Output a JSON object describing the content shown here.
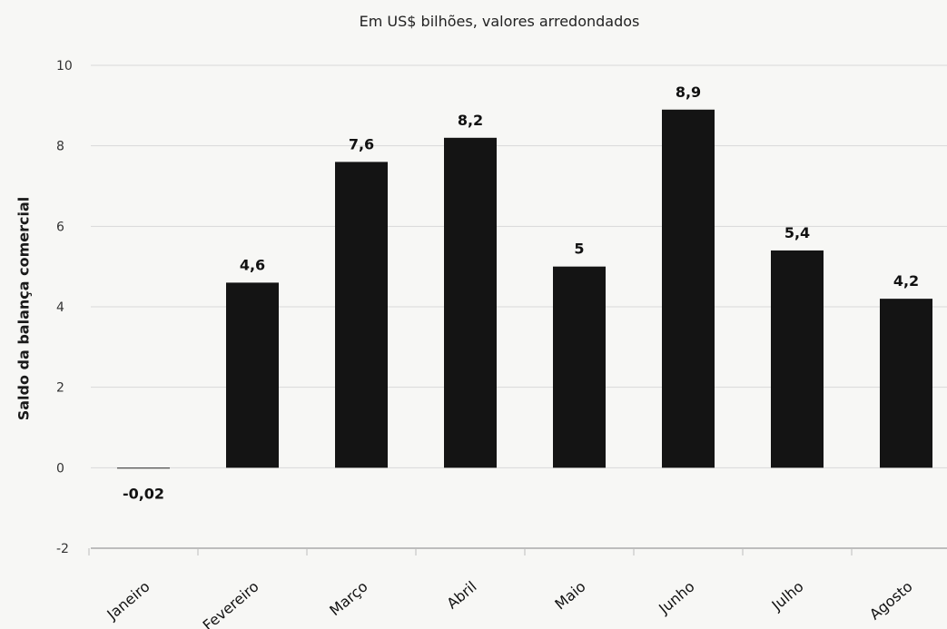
{
  "chart_data": {
    "type": "bar",
    "subtitle": "Em US$ bilhões, valores arredondados",
    "ylabel": "Saldo da balança comercial",
    "xlabel": "",
    "categories": [
      "Janeiro",
      "Fevereiro",
      "Março",
      "Abril",
      "Maio",
      "Junho",
      "Julho",
      "Agosto"
    ],
    "values": [
      -0.02,
      4.6,
      7.6,
      8.2,
      5,
      8.9,
      5.4,
      4.2
    ],
    "value_labels": [
      "-0,02",
      "4,6",
      "7,6",
      "8,2",
      "5",
      "8,9",
      "5,4",
      "4,2"
    ],
    "y_ticks": [
      -2,
      0,
      2,
      4,
      6,
      8,
      10
    ],
    "ylim": [
      -2,
      10
    ],
    "grid": true,
    "bar_color": "#141414"
  }
}
